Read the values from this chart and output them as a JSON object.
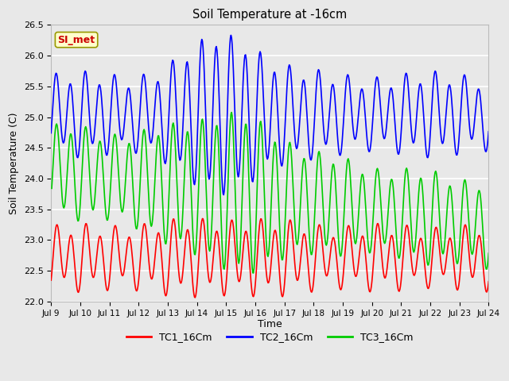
{
  "title": "Soil Temperature at -16cm",
  "xlabel": "Time",
  "ylabel": "Soil Temperature (C)",
  "ylim": [
    22.0,
    26.5
  ],
  "background_color": "#e8e8e8",
  "plot_bg_color": "#e8e8e8",
  "grid_color": "white",
  "annotation_text": "SI_met",
  "annotation_bg": "#ffffcc",
  "annotation_border": "#999900",
  "annotation_text_color": "#cc0000",
  "tick_labels": [
    "Jul 9",
    "Jul 10",
    "Jul 11",
    "Jul 12",
    "Jul 13",
    "Jul 14",
    "Jul 15",
    "Jul 16",
    "Jul 17",
    "Jul 18",
    "Jul 19",
    "Jul 20",
    "Jul 21",
    "Jul 22",
    "Jul 23",
    "Jul 24"
  ],
  "yticks": [
    22.0,
    22.5,
    23.0,
    23.5,
    24.0,
    24.5,
    25.0,
    25.5,
    26.0,
    26.5
  ],
  "series": {
    "TC1_16Cm": {
      "color": "#ff0000",
      "linewidth": 1.2
    },
    "TC2_16Cm": {
      "color": "#0000ff",
      "linewidth": 1.2
    },
    "TC3_16Cm": {
      "color": "#00cc00",
      "linewidth": 1.2
    }
  },
  "legend_labels": [
    "TC1_16Cm",
    "TC2_16Cm",
    "TC3_16Cm"
  ]
}
